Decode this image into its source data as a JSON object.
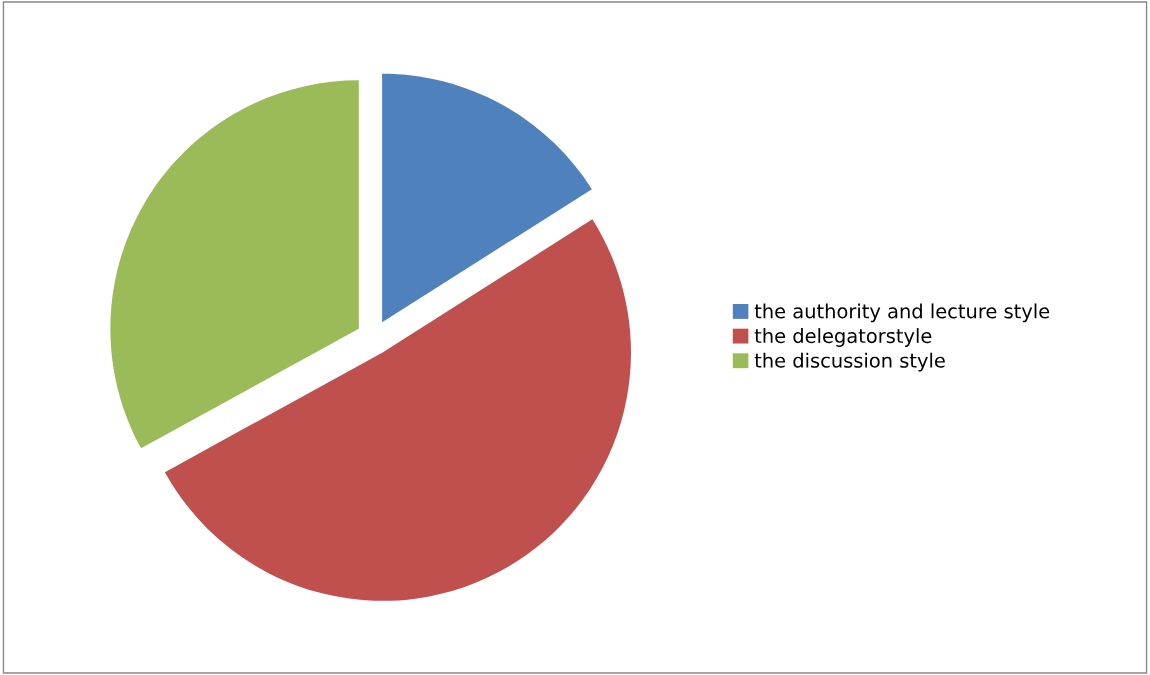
{
  "chart_data": {
    "type": "pie",
    "categories": [
      "the authority and lecture style",
      "the delegatorstyle",
      "the discussion style"
    ],
    "values": [
      16,
      51,
      33
    ],
    "colors": [
      "#4f81bd",
      "#c0504d",
      "#9bbb59"
    ],
    "legend": "right"
  }
}
